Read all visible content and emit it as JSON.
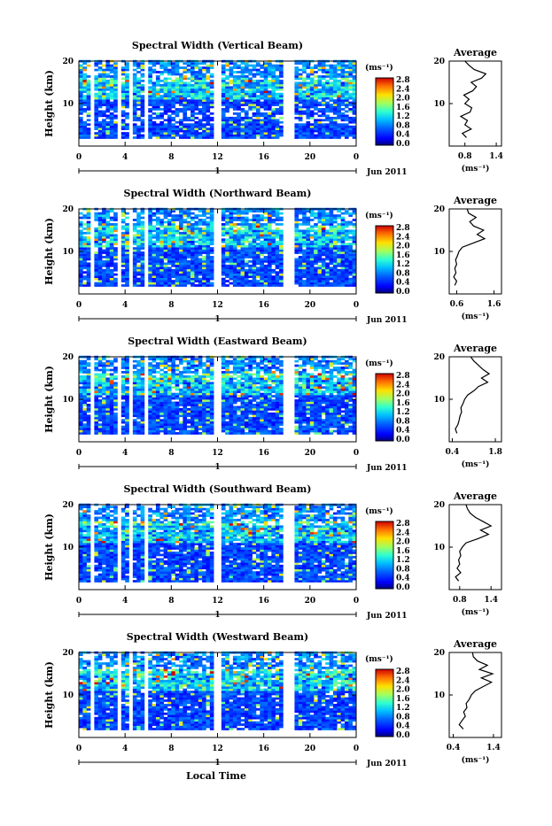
{
  "chart_data": [
    {
      "type": "heatmap",
      "title": "Spectral Width (Vertical Beam)",
      "ylabel": "Height (km)",
      "y_ticks": [
        "20",
        "10"
      ],
      "x_ticks": [
        "0",
        "4",
        "8",
        "12",
        "16",
        "20",
        "0"
      ],
      "date_day": "1",
      "date_label": "Jun 2011",
      "unit_label": "(ms⁻¹)",
      "colorbar_ticks": [
        "2.8",
        "2.4",
        "2.0",
        "1.6",
        "1.2",
        "0.8",
        "0.4",
        "0.0"
      ],
      "xlim": [
        0,
        24
      ],
      "ylim": [
        0,
        20
      ],
      "clim": [
        0,
        2.8
      ],
      "average": {
        "title": "Average",
        "y_ticks": [
          "20",
          "10"
        ],
        "x_ticks": [
          "0.8",
          "1.4"
        ],
        "xlim": [
          0.5,
          1.5
        ],
        "xlabel": "(ms⁻¹)",
        "profile": [
          [
            0.83,
            2
          ],
          [
            0.75,
            3
          ],
          [
            0.92,
            4
          ],
          [
            0.8,
            5
          ],
          [
            0.85,
            6
          ],
          [
            0.72,
            7
          ],
          [
            0.9,
            8
          ],
          [
            0.93,
            9
          ],
          [
            0.8,
            10
          ],
          [
            0.88,
            11
          ],
          [
            0.78,
            12
          ],
          [
            0.95,
            13
          ],
          [
            1.02,
            14
          ],
          [
            0.92,
            15
          ],
          [
            1.12,
            16
          ],
          [
            1.2,
            17
          ],
          [
            0.98,
            18
          ],
          [
            0.88,
            19
          ],
          [
            0.8,
            20
          ]
        ]
      }
    },
    {
      "type": "heatmap",
      "title": "Spectral Width (Northward Beam)",
      "ylabel": "Height (km)",
      "y_ticks": [
        "20",
        "10"
      ],
      "x_ticks": [
        "0",
        "4",
        "8",
        "12",
        "16",
        "20",
        "0"
      ],
      "date_day": "1",
      "date_label": "Jun 2011",
      "unit_label": "(ms⁻¹)",
      "colorbar_ticks": [
        "2.8",
        "2.4",
        "2.0",
        "1.6",
        "1.2",
        "0.8",
        "0.4",
        "0.0"
      ],
      "xlim": [
        0,
        24
      ],
      "ylim": [
        0,
        20
      ],
      "clim": [
        0,
        2.8
      ],
      "average": {
        "title": "Average",
        "y_ticks": [
          "20",
          "10"
        ],
        "x_ticks": [
          "0.6",
          "1.6"
        ],
        "xlim": [
          0.4,
          1.8
        ],
        "xlabel": "(ms⁻¹)",
        "profile": [
          [
            0.55,
            2
          ],
          [
            0.6,
            3
          ],
          [
            0.52,
            4
          ],
          [
            0.58,
            5
          ],
          [
            0.55,
            6
          ],
          [
            0.6,
            7
          ],
          [
            0.57,
            8
          ],
          [
            0.62,
            9
          ],
          [
            0.66,
            10
          ],
          [
            0.75,
            11
          ],
          [
            1.05,
            12
          ],
          [
            1.35,
            13
          ],
          [
            1.15,
            14
          ],
          [
            1.32,
            15
          ],
          [
            1.05,
            16
          ],
          [
            0.95,
            17
          ],
          [
            1.12,
            18
          ],
          [
            0.92,
            19
          ],
          [
            0.88,
            20
          ]
        ]
      }
    },
    {
      "type": "heatmap",
      "title": "Spectral Width (Eastward Beam)",
      "ylabel": "Height (km)",
      "y_ticks": [
        "20",
        "10"
      ],
      "x_ticks": [
        "0",
        "4",
        "8",
        "12",
        "16",
        "20",
        "0"
      ],
      "date_day": "1",
      "date_label": "Jun 2011",
      "unit_label": "(ms⁻¹)",
      "colorbar_ticks": [
        "2.8",
        "2.4",
        "2.0",
        "1.6",
        "1.2",
        "0.8",
        "0.4",
        "0.0"
      ],
      "xlim": [
        0,
        24
      ],
      "ylim": [
        0,
        20
      ],
      "clim": [
        0,
        2.8
      ],
      "average": {
        "title": "Average",
        "y_ticks": [
          "20",
          "10"
        ],
        "x_ticks": [
          "0.4",
          "1.8"
        ],
        "xlim": [
          0.3,
          2.0
        ],
        "xlabel": "(ms⁻¹)",
        "profile": [
          [
            0.55,
            2
          ],
          [
            0.5,
            3
          ],
          [
            0.58,
            4
          ],
          [
            0.62,
            5
          ],
          [
            0.65,
            6
          ],
          [
            0.7,
            7
          ],
          [
            0.68,
            8
          ],
          [
            0.75,
            9
          ],
          [
            0.8,
            10
          ],
          [
            0.9,
            11
          ],
          [
            1.1,
            12
          ],
          [
            1.25,
            13
          ],
          [
            1.55,
            14
          ],
          [
            1.35,
            15
          ],
          [
            1.6,
            16
          ],
          [
            1.4,
            17
          ],
          [
            1.25,
            18
          ],
          [
            1.1,
            19
          ],
          [
            1.0,
            20
          ]
        ]
      }
    },
    {
      "type": "heatmap",
      "title": "Spectral Width (Southward Beam)",
      "ylabel": "Height (km)",
      "y_ticks": [
        "20",
        "10"
      ],
      "x_ticks": [
        "0",
        "4",
        "8",
        "12",
        "16",
        "20",
        "0"
      ],
      "date_day": "1",
      "date_label": "Jun 2011",
      "unit_label": "(ms⁻¹)",
      "colorbar_ticks": [
        "2.8",
        "2.4",
        "2.0",
        "1.6",
        "1.2",
        "0.8",
        "0.4",
        "0.0"
      ],
      "xlim": [
        0,
        24
      ],
      "ylim": [
        0,
        20
      ],
      "clim": [
        0,
        2.8
      ],
      "average": {
        "title": "Average",
        "y_ticks": [
          "20",
          "10"
        ],
        "x_ticks": [
          "0.8",
          "1.4"
        ],
        "xlim": [
          0.6,
          1.6
        ],
        "xlabel": "(ms⁻¹)",
        "profile": [
          [
            0.78,
            2
          ],
          [
            0.72,
            3
          ],
          [
            0.82,
            4
          ],
          [
            0.75,
            5
          ],
          [
            0.8,
            6
          ],
          [
            0.78,
            7
          ],
          [
            0.82,
            8
          ],
          [
            0.8,
            9
          ],
          [
            0.85,
            10
          ],
          [
            0.92,
            11
          ],
          [
            1.15,
            12
          ],
          [
            1.35,
            13
          ],
          [
            1.2,
            14
          ],
          [
            1.4,
            15
          ],
          [
            1.25,
            16
          ],
          [
            1.1,
            17
          ],
          [
            1.0,
            18
          ],
          [
            0.95,
            19
          ],
          [
            0.92,
            20
          ]
        ]
      }
    },
    {
      "type": "heatmap",
      "title": "Spectral Width (Westward Beam)",
      "ylabel": "Height (km)",
      "y_ticks": [
        "20",
        "10"
      ],
      "x_ticks": [
        "0",
        "4",
        "8",
        "12",
        "16",
        "20",
        "0"
      ],
      "date_day": "1",
      "date_label": "Jun 2011",
      "unit_label": "(ms⁻¹)",
      "colorbar_ticks": [
        "2.8",
        "2.4",
        "2.0",
        "1.6",
        "1.2",
        "0.8",
        "0.4",
        "0.0"
      ],
      "xlim": [
        0,
        24
      ],
      "ylim": [
        0,
        20
      ],
      "clim": [
        0,
        2.8
      ],
      "average": {
        "title": "Average",
        "y_ticks": [
          "20",
          "10"
        ],
        "x_ticks": [
          "0.4",
          "1.4"
        ],
        "xlim": [
          0.3,
          1.6
        ],
        "xlabel": "(ms⁻¹)",
        "profile": [
          [
            0.65,
            2
          ],
          [
            0.55,
            3
          ],
          [
            0.62,
            4
          ],
          [
            0.7,
            5
          ],
          [
            0.66,
            6
          ],
          [
            0.74,
            7
          ],
          [
            0.72,
            8
          ],
          [
            0.8,
            9
          ],
          [
            0.85,
            10
          ],
          [
            0.95,
            11
          ],
          [
            1.15,
            12
          ],
          [
            1.35,
            13
          ],
          [
            1.1,
            14
          ],
          [
            1.38,
            15
          ],
          [
            1.05,
            16
          ],
          [
            1.25,
            17
          ],
          [
            1.0,
            18
          ],
          [
            0.9,
            19
          ],
          [
            0.88,
            20
          ]
        ]
      }
    }
  ],
  "xlabel": "Local Time"
}
